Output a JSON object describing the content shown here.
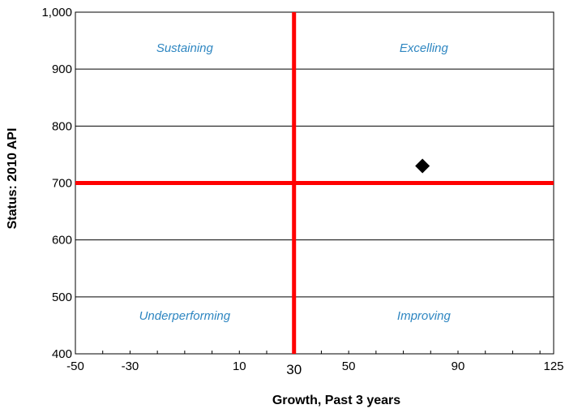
{
  "chart_data": {
    "type": "scatter",
    "title": "",
    "xlabel": "Growth, Past 3 years",
    "ylabel": "Status: 2010 API",
    "xlim": [
      -50,
      125
    ],
    "ylim": [
      400,
      1000
    ],
    "x_ticks": [
      -50,
      -30,
      10,
      50,
      90,
      125
    ],
    "x_tick_labels": [
      "-50",
      "-30",
      "10",
      "50",
      "90",
      "125"
    ],
    "y_ticks": [
      400,
      500,
      600,
      700,
      800,
      900,
      1000
    ],
    "y_tick_labels": [
      "400",
      "500",
      "600",
      "700",
      "800",
      "900",
      "1,000"
    ],
    "grid": "horizontal",
    "reference_lines": {
      "x": 30,
      "x_label": "30",
      "y": 700,
      "color": "#ff0000"
    },
    "quadrant_labels": {
      "top_left": "Sustaining",
      "top_right": "Excelling",
      "bottom_left": "Underperforming",
      "bottom_right": "Improving"
    },
    "quadrant_label_color": "#2e86c1",
    "series": [
      {
        "marker": "diamond",
        "color": "#000000",
        "points": [
          [
            77,
            730
          ]
        ]
      }
    ]
  }
}
